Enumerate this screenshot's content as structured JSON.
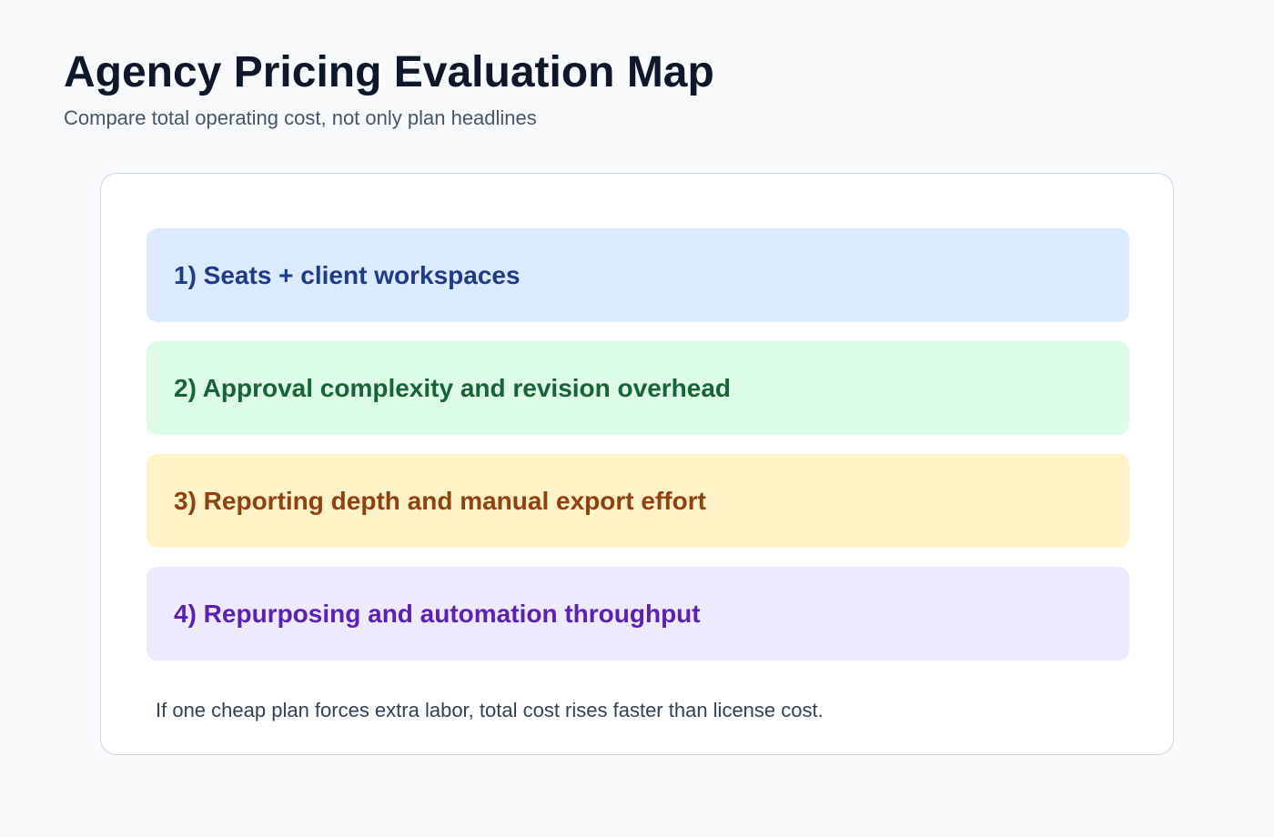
{
  "header": {
    "title": "Agency Pricing Evaluation Map",
    "subtitle": "Compare total operating cost, not only plan headlines"
  },
  "steps": [
    {
      "label": "1) Seats + client workspaces",
      "background": "#dbeafe",
      "color": "#1e3a8a"
    },
    {
      "label": "2) Approval complexity and revision overhead",
      "background": "#dcfce7",
      "color": "#166534"
    },
    {
      "label": "3) Reporting depth and manual export effort",
      "background": "#fef3c7",
      "color": "#92400e"
    },
    {
      "label": "4) Repurposing and automation throughput",
      "background": "#ede9fe",
      "color": "#5b21b6"
    }
  ],
  "footnote": "If one cheap plan forces extra labor, total cost rises faster than license cost."
}
